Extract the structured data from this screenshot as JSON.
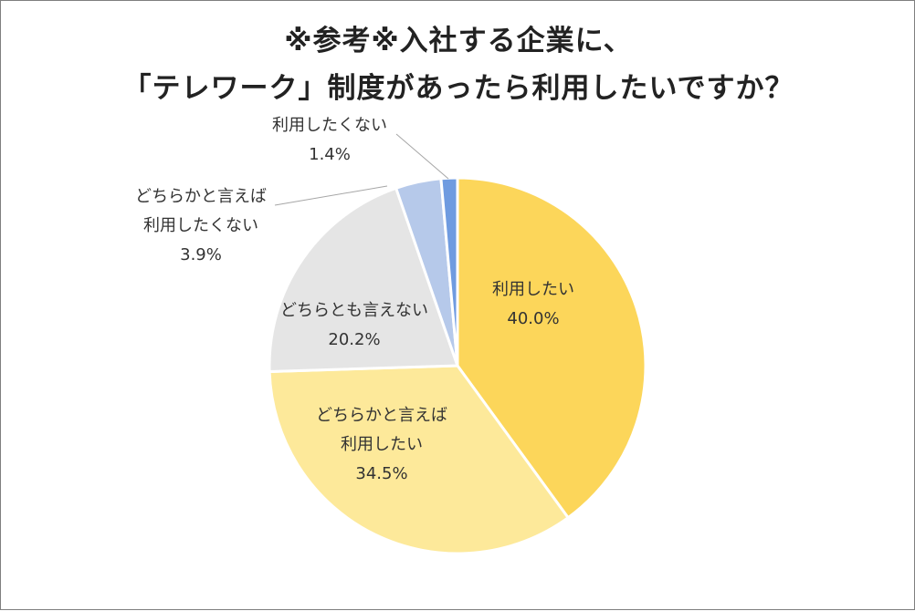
{
  "chart_data": {
    "type": "pie",
    "title_lines": [
      "※参考※入社する企業に、",
      "「テレワーク」制度があったら利用したいですか？"
    ],
    "slices": [
      {
        "label_lines": [
          "利用したい"
        ],
        "value": 40.0,
        "value_label": "40.0%",
        "color": "#fcd65a"
      },
      {
        "label_lines": [
          "どちらかと言えば",
          "利用したい"
        ],
        "value": 34.5,
        "value_label": "34.5%",
        "color": "#fde99a"
      },
      {
        "label_lines": [
          "どちらとも言えない"
        ],
        "value": 20.2,
        "value_label": "20.2%",
        "color": "#e5e5e5"
      },
      {
        "label_lines": [
          "どちらかと言えば",
          "利用したくない"
        ],
        "value": 3.9,
        "value_label": "3.9%",
        "color": "#b6c9ea"
      },
      {
        "label_lines": [
          "利用したくない"
        ],
        "value": 1.4,
        "value_label": "1.4%",
        "color": "#6f9be0"
      }
    ]
  }
}
